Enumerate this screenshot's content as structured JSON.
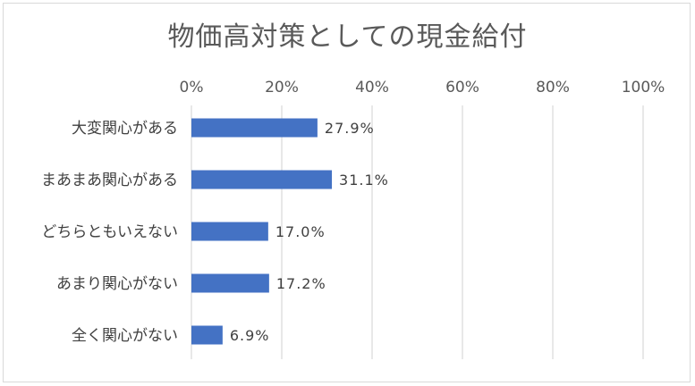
{
  "chart_data": {
    "type": "bar",
    "orientation": "horizontal",
    "title": "物価高対策としての現金給付",
    "categories": [
      "大変関心がある",
      "まあまあ関心がある",
      "どちらともいえない",
      "あまり関心がない",
      "全く関心がない"
    ],
    "values": [
      27.9,
      31.1,
      17.0,
      17.2,
      6.9
    ],
    "value_labels": [
      "27.9%",
      "31.1%",
      "17.0%",
      "17.2%",
      "6.9%"
    ],
    "x_ticks": [
      "0%",
      "20%",
      "40%",
      "60%",
      "80%",
      "100%"
    ],
    "xlim": [
      0,
      100
    ],
    "x_axis_position": "top",
    "grid": true,
    "legend": "none",
    "colors": {
      "bar": "#4472c4",
      "grid": "#d9d9d9",
      "text": "#595959",
      "label": "#404040"
    }
  }
}
